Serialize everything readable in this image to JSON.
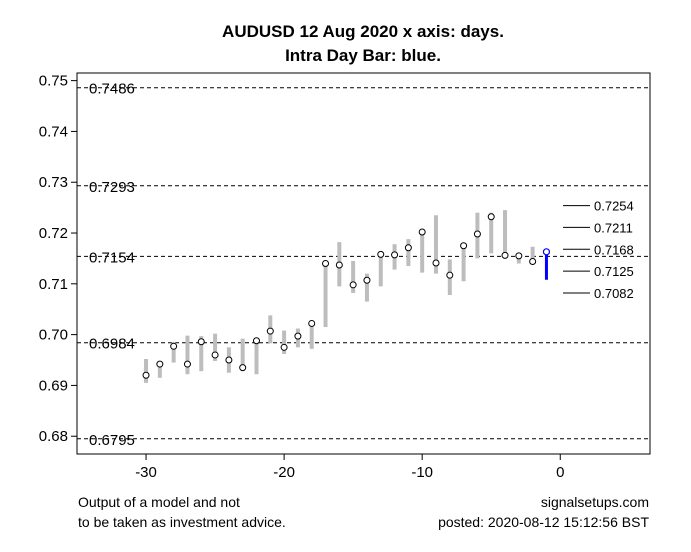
{
  "chart_data": {
    "type": "line",
    "title_line1": "AUDUSD 12 Aug 2020 x axis: days.",
    "title_line2": "Intra Day Bar: blue.",
    "xlabel": "",
    "ylabel": "",
    "xlim": [
      -35,
      6.5
    ],
    "ylim": [
      0.6765,
      0.7515
    ],
    "x_ticks": [
      -30,
      -20,
      -10,
      0
    ],
    "y_ticks": [
      0.68,
      0.69,
      0.7,
      0.71,
      0.72,
      0.73,
      0.74,
      0.75
    ],
    "y_tick_labels": [
      "0.68",
      "0.69",
      "0.70",
      "0.71",
      "0.72",
      "0.73",
      "0.74",
      "0.75"
    ],
    "reference_lines": [
      {
        "value": 0.7486,
        "label": "0.7486"
      },
      {
        "value": 0.7293,
        "label": "0.7293"
      },
      {
        "value": 0.7154,
        "label": "0.7154"
      },
      {
        "value": 0.6984,
        "label": "0.6984"
      },
      {
        "value": 0.6795,
        "label": "0.6795"
      }
    ],
    "daily_bars": [
      {
        "x": -30,
        "low": 0.6905,
        "high": 0.6952,
        "close": 0.692
      },
      {
        "x": -29,
        "low": 0.6915,
        "high": 0.6948,
        "close": 0.6942
      },
      {
        "x": -28,
        "low": 0.6945,
        "high": 0.6985,
        "close": 0.6977
      },
      {
        "x": -27,
        "low": 0.6922,
        "high": 0.6998,
        "close": 0.6942
      },
      {
        "x": -26,
        "low": 0.6928,
        "high": 0.6997,
        "close": 0.6986
      },
      {
        "x": -25,
        "low": 0.6948,
        "high": 0.7002,
        "close": 0.696
      },
      {
        "x": -24,
        "low": 0.6925,
        "high": 0.6975,
        "close": 0.695
      },
      {
        "x": -23,
        "low": 0.6928,
        "high": 0.6992,
        "close": 0.6935
      },
      {
        "x": -22,
        "low": 0.6922,
        "high": 0.699,
        "close": 0.6988
      },
      {
        "x": -21,
        "low": 0.6983,
        "high": 0.7038,
        "close": 0.7007
      },
      {
        "x": -20,
        "low": 0.6962,
        "high": 0.7008,
        "close": 0.6975
      },
      {
        "x": -19,
        "low": 0.6975,
        "high": 0.7012,
        "close": 0.6997
      },
      {
        "x": -18,
        "low": 0.6972,
        "high": 0.7025,
        "close": 0.7022
      },
      {
        "x": -17,
        "low": 0.7015,
        "high": 0.7145,
        "close": 0.714
      },
      {
        "x": -16,
        "low": 0.7095,
        "high": 0.7182,
        "close": 0.7137
      },
      {
        "x": -15,
        "low": 0.7082,
        "high": 0.7145,
        "close": 0.7098
      },
      {
        "x": -14,
        "low": 0.7065,
        "high": 0.712,
        "close": 0.7107
      },
      {
        "x": -13,
        "low": 0.7095,
        "high": 0.716,
        "close": 0.7158
      },
      {
        "x": -12,
        "low": 0.7128,
        "high": 0.7178,
        "close": 0.7157
      },
      {
        "x": -11,
        "low": 0.7135,
        "high": 0.7188,
        "close": 0.7171
      },
      {
        "x": -10,
        "low": 0.7122,
        "high": 0.7205,
        "close": 0.7202
      },
      {
        "x": -9,
        "low": 0.712,
        "high": 0.7235,
        "close": 0.7141
      },
      {
        "x": -8,
        "low": 0.7078,
        "high": 0.7148,
        "close": 0.7117
      },
      {
        "x": -7,
        "low": 0.7105,
        "high": 0.7178,
        "close": 0.7175
      },
      {
        "x": -6,
        "low": 0.715,
        "high": 0.724,
        "close": 0.7198
      },
      {
        "x": -5,
        "low": 0.716,
        "high": 0.724,
        "close": 0.7232
      },
      {
        "x": -4,
        "low": 0.715,
        "high": 0.7245,
        "close": 0.7156
      },
      {
        "x": -3,
        "low": 0.714,
        "high": 0.716,
        "close": 0.7155
      },
      {
        "x": -2,
        "low": 0.7138,
        "high": 0.7173,
        "close": 0.7144
      }
    ],
    "intraday_bar": {
      "x": -1,
      "low": 0.7108,
      "high": 0.7165,
      "close": 0.7163
    },
    "projection_levels": [
      {
        "value": 0.7254,
        "label": "0.7254"
      },
      {
        "value": 0.7211,
        "label": "0.7211"
      },
      {
        "value": 0.7168,
        "label": "0.7168"
      },
      {
        "value": 0.7125,
        "label": "0.7125"
      },
      {
        "value": 0.7082,
        "label": "0.7082"
      }
    ],
    "colors": {
      "daily_bar": "#bdbdbd",
      "intraday_bar": "#0000ff",
      "reference_line": "#000000",
      "marker_fill": "#ffffff"
    },
    "grid": false,
    "legend": "none"
  },
  "footer": {
    "left_line1": "Output of a model and not",
    "left_line2": "to be taken as investment advice.",
    "right_line1": "signalsetups.com",
    "right_line2": "posted: 2020-08-12 15:12:56 BST"
  }
}
